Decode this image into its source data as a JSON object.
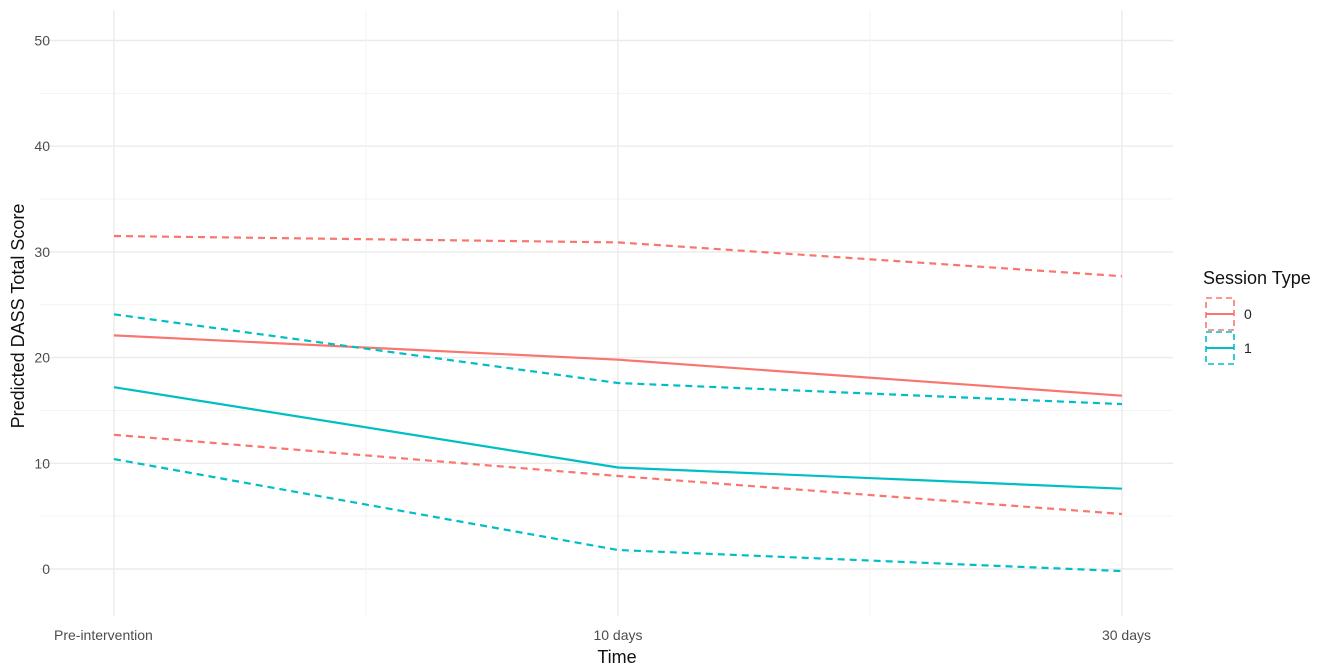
{
  "chart_data": {
    "type": "line",
    "xlabel": "Time",
    "ylabel": "Predicted DASS Total Score",
    "categories": [
      "Pre-intervention",
      "10 days",
      "30 days"
    ],
    "ylim": [
      -5,
      52
    ],
    "yticks": [
      0,
      10,
      20,
      30,
      40,
      50
    ],
    "grid": true,
    "legend": {
      "title": "Session Type",
      "position": "right",
      "entries": [
        "0",
        "1"
      ]
    },
    "colors": {
      "0": "#F8766D",
      "1": "#00BFC4"
    },
    "series": [
      {
        "name": "0",
        "line": "solid",
        "values": [
          22.1,
          19.8,
          16.4
        ]
      },
      {
        "name": "0",
        "line": "dashed",
        "values": [
          31.5,
          30.9,
          27.7
        ]
      },
      {
        "name": "0",
        "line": "dashed",
        "values": [
          12.7,
          8.8,
          5.2
        ]
      },
      {
        "name": "1",
        "line": "solid",
        "values": [
          17.2,
          9.6,
          7.6
        ]
      },
      {
        "name": "1",
        "line": "dashed",
        "values": [
          24.1,
          17.6,
          15.6
        ]
      },
      {
        "name": "1",
        "line": "dashed",
        "values": [
          10.4,
          1.8,
          -0.2
        ]
      }
    ]
  }
}
